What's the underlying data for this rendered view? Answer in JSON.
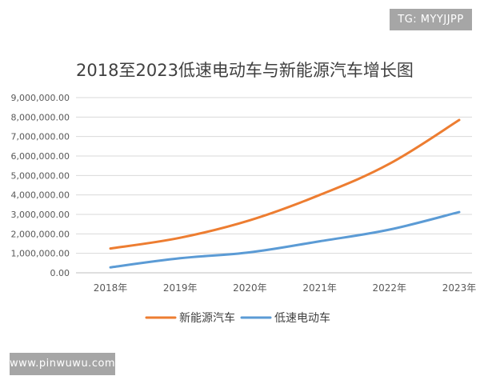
{
  "watermarks": {
    "top_right": "TG: MYYJJPP",
    "bottom_left": "www.pinwuwu.com"
  },
  "chart_data": {
    "type": "line",
    "title": "2018至2023低速电动车与新能源汽车增长图",
    "xlabel": "",
    "ylabel": "",
    "categories": [
      "2018年",
      "2019年",
      "2020年",
      "2021年",
      "2022年",
      "2023年"
    ],
    "ylim": [
      0,
      9000000
    ],
    "yticks": [
      0,
      1000000,
      2000000,
      3000000,
      4000000,
      5000000,
      6000000,
      7000000,
      8000000,
      9000000
    ],
    "ytick_labels": [
      "0.00",
      "1,000,000.00",
      "2,000,000.00",
      "3,000,000.00",
      "4,000,000.00",
      "5,000,000.00",
      "6,000,000.00",
      "7,000,000.00",
      "8,000,000.00",
      "9,000,000.00"
    ],
    "grid": true,
    "legend_position": "bottom",
    "series": [
      {
        "name": "新能源汽车",
        "color": "#ed7d31",
        "values": [
          1250000,
          1800000,
          2700000,
          4000000,
          5600000,
          7850000
        ]
      },
      {
        "name": "低速电动车",
        "color": "#5b9bd5",
        "values": [
          280000,
          750000,
          1050000,
          1620000,
          2220000,
          3120000
        ]
      }
    ]
  }
}
